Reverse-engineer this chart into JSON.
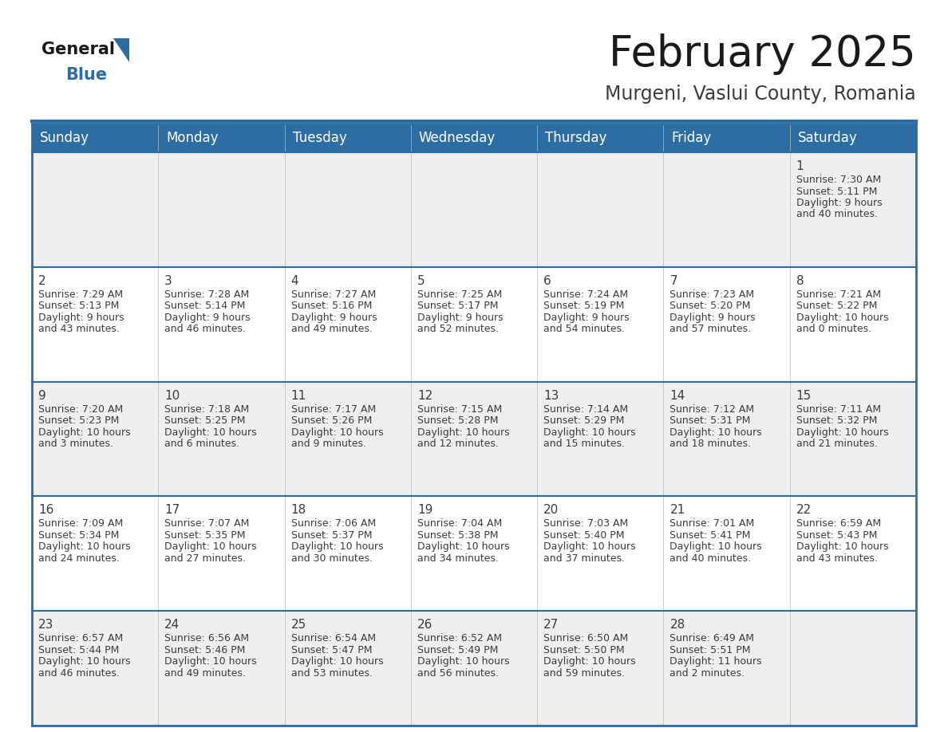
{
  "title": "February 2025",
  "subtitle": "Murgeni, Vaslui County, Romania",
  "header_bg": "#2E6DA4",
  "header_text": "#FFFFFF",
  "cell_bg_odd": "#EFEFEF",
  "cell_bg_even": "#FFFFFF",
  "border_color": "#2E6DA4",
  "grid_line_color": "#2E6DA4",
  "text_color": "#3C3C3C",
  "days_of_week": [
    "Sunday",
    "Monday",
    "Tuesday",
    "Wednesday",
    "Thursday",
    "Friday",
    "Saturday"
  ],
  "weeks": [
    [
      {
        "day": null,
        "sunrise": null,
        "sunset": null,
        "daylight": null
      },
      {
        "day": null,
        "sunrise": null,
        "sunset": null,
        "daylight": null
      },
      {
        "day": null,
        "sunrise": null,
        "sunset": null,
        "daylight": null
      },
      {
        "day": null,
        "sunrise": null,
        "sunset": null,
        "daylight": null
      },
      {
        "day": null,
        "sunrise": null,
        "sunset": null,
        "daylight": null
      },
      {
        "day": null,
        "sunrise": null,
        "sunset": null,
        "daylight": null
      },
      {
        "day": 1,
        "sunrise": "7:30 AM",
        "sunset": "5:11 PM",
        "daylight": "9 hours\nand 40 minutes."
      }
    ],
    [
      {
        "day": 2,
        "sunrise": "7:29 AM",
        "sunset": "5:13 PM",
        "daylight": "9 hours\nand 43 minutes."
      },
      {
        "day": 3,
        "sunrise": "7:28 AM",
        "sunset": "5:14 PM",
        "daylight": "9 hours\nand 46 minutes."
      },
      {
        "day": 4,
        "sunrise": "7:27 AM",
        "sunset": "5:16 PM",
        "daylight": "9 hours\nand 49 minutes."
      },
      {
        "day": 5,
        "sunrise": "7:25 AM",
        "sunset": "5:17 PM",
        "daylight": "9 hours\nand 52 minutes."
      },
      {
        "day": 6,
        "sunrise": "7:24 AM",
        "sunset": "5:19 PM",
        "daylight": "9 hours\nand 54 minutes."
      },
      {
        "day": 7,
        "sunrise": "7:23 AM",
        "sunset": "5:20 PM",
        "daylight": "9 hours\nand 57 minutes."
      },
      {
        "day": 8,
        "sunrise": "7:21 AM",
        "sunset": "5:22 PM",
        "daylight": "10 hours\nand 0 minutes."
      }
    ],
    [
      {
        "day": 9,
        "sunrise": "7:20 AM",
        "sunset": "5:23 PM",
        "daylight": "10 hours\nand 3 minutes."
      },
      {
        "day": 10,
        "sunrise": "7:18 AM",
        "sunset": "5:25 PM",
        "daylight": "10 hours\nand 6 minutes."
      },
      {
        "day": 11,
        "sunrise": "7:17 AM",
        "sunset": "5:26 PM",
        "daylight": "10 hours\nand 9 minutes."
      },
      {
        "day": 12,
        "sunrise": "7:15 AM",
        "sunset": "5:28 PM",
        "daylight": "10 hours\nand 12 minutes."
      },
      {
        "day": 13,
        "sunrise": "7:14 AM",
        "sunset": "5:29 PM",
        "daylight": "10 hours\nand 15 minutes."
      },
      {
        "day": 14,
        "sunrise": "7:12 AM",
        "sunset": "5:31 PM",
        "daylight": "10 hours\nand 18 minutes."
      },
      {
        "day": 15,
        "sunrise": "7:11 AM",
        "sunset": "5:32 PM",
        "daylight": "10 hours\nand 21 minutes."
      }
    ],
    [
      {
        "day": 16,
        "sunrise": "7:09 AM",
        "sunset": "5:34 PM",
        "daylight": "10 hours\nand 24 minutes."
      },
      {
        "day": 17,
        "sunrise": "7:07 AM",
        "sunset": "5:35 PM",
        "daylight": "10 hours\nand 27 minutes."
      },
      {
        "day": 18,
        "sunrise": "7:06 AM",
        "sunset": "5:37 PM",
        "daylight": "10 hours\nand 30 minutes."
      },
      {
        "day": 19,
        "sunrise": "7:04 AM",
        "sunset": "5:38 PM",
        "daylight": "10 hours\nand 34 minutes."
      },
      {
        "day": 20,
        "sunrise": "7:03 AM",
        "sunset": "5:40 PM",
        "daylight": "10 hours\nand 37 minutes."
      },
      {
        "day": 21,
        "sunrise": "7:01 AM",
        "sunset": "5:41 PM",
        "daylight": "10 hours\nand 40 minutes."
      },
      {
        "day": 22,
        "sunrise": "6:59 AM",
        "sunset": "5:43 PM",
        "daylight": "10 hours\nand 43 minutes."
      }
    ],
    [
      {
        "day": 23,
        "sunrise": "6:57 AM",
        "sunset": "5:44 PM",
        "daylight": "10 hours\nand 46 minutes."
      },
      {
        "day": 24,
        "sunrise": "6:56 AM",
        "sunset": "5:46 PM",
        "daylight": "10 hours\nand 49 minutes."
      },
      {
        "day": 25,
        "sunrise": "6:54 AM",
        "sunset": "5:47 PM",
        "daylight": "10 hours\nand 53 minutes."
      },
      {
        "day": 26,
        "sunrise": "6:52 AM",
        "sunset": "5:49 PM",
        "daylight": "10 hours\nand 56 minutes."
      },
      {
        "day": 27,
        "sunrise": "6:50 AM",
        "sunset": "5:50 PM",
        "daylight": "10 hours\nand 59 minutes."
      },
      {
        "day": 28,
        "sunrise": "6:49 AM",
        "sunset": "5:51 PM",
        "daylight": "11 hours\nand 2 minutes."
      },
      {
        "day": null,
        "sunrise": null,
        "sunset": null,
        "daylight": null
      }
    ]
  ],
  "logo_color_general": "#1A1A1A",
  "logo_color_blue": "#2E6DA4",
  "logo_triangle_color": "#2E6DA4",
  "title_fontsize": 38,
  "subtitle_fontsize": 17,
  "header_fontsize": 12,
  "day_num_fontsize": 11,
  "cell_fontsize": 9
}
